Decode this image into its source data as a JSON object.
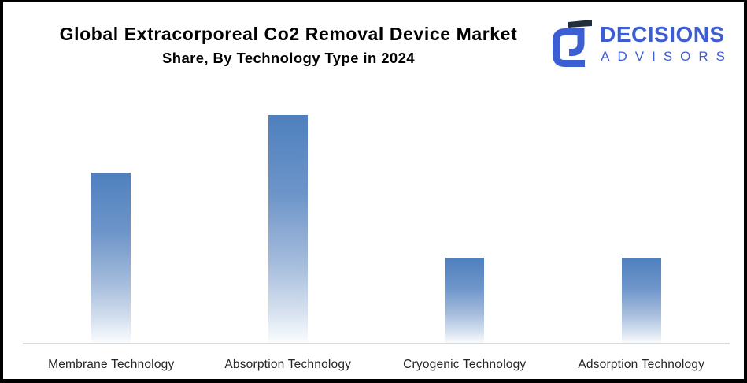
{
  "header": {
    "title_line1": "Global Extracorporeal Co2 Removal Device Market",
    "title_line2": "Share, By Technology Type in 2024"
  },
  "logo": {
    "name": "DECISIONS",
    "subname": "ADVISORS",
    "brand_color": "#3d5ed3",
    "mark_accent_color": "#202e3e"
  },
  "chart_data": {
    "type": "bar",
    "title": "Global Extracorporeal Co2 Removal Device Market Share, By Technology Type in 2024",
    "categories": [
      "Membrane Technology",
      "Absorption Technology",
      "Cryogenic Technology",
      "Adsorption Technology"
    ],
    "values": [
      30,
      40,
      15,
      15
    ],
    "value_unit": "%",
    "xlabel": "",
    "ylabel": "",
    "ylim": [
      0,
      45
    ],
    "grid": false,
    "legend": false,
    "data_labels": false,
    "bar_gradient": [
      "#4e80be",
      "#6e95c9",
      "#a5bcdc",
      "#d3dfee",
      "#fbfdfe"
    ],
    "axis_line_color": "#d9d9d9"
  }
}
